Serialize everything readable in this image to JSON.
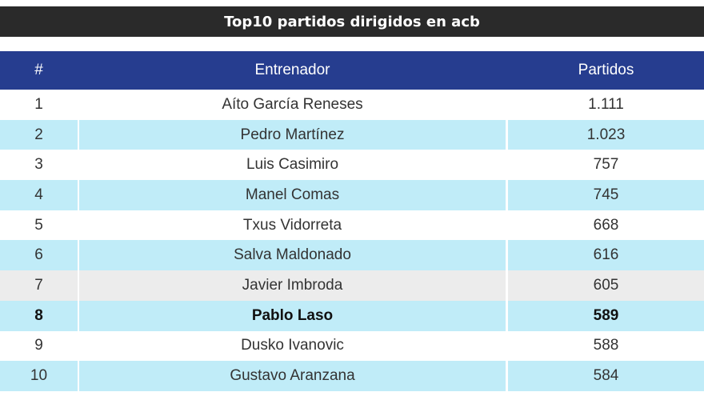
{
  "chart_data": {
    "type": "table",
    "title": "Top10 partidos dirigidos en acb",
    "columns": [
      "#",
      "Entrenador",
      "Partidos"
    ],
    "rows": [
      {
        "rank": "1",
        "coach": "Aíto García Reneses",
        "games": "1.111",
        "style": "white"
      },
      {
        "rank": "2",
        "coach": "Pedro Martínez",
        "games": "1.023",
        "style": "blue"
      },
      {
        "rank": "3",
        "coach": "Luis Casimiro",
        "games": "757",
        "style": "white"
      },
      {
        "rank": "4",
        "coach": "Manel Comas",
        "games": "745",
        "style": "blue"
      },
      {
        "rank": "5",
        "coach": "Txus Vidorreta",
        "games": "668",
        "style": "white"
      },
      {
        "rank": "6",
        "coach": "Salva Maldonado",
        "games": "616",
        "style": "blue"
      },
      {
        "rank": "7",
        "coach": "Javier Imbroda",
        "games": "605",
        "style": "grey"
      },
      {
        "rank": "8",
        "coach": "Pablo Laso",
        "games": "589",
        "style": "blue",
        "highlight": true
      },
      {
        "rank": "9",
        "coach": "Dusko Ivanovic",
        "games": "588",
        "style": "white"
      },
      {
        "rank": "10",
        "coach": "Gustavo Aranzana",
        "games": "584",
        "style": "blue"
      }
    ]
  },
  "colors": {
    "title_bg": "#2a2a2a",
    "header_bg": "#263d8f",
    "row_blue": "#c0ecf8",
    "row_grey": "#ececec",
    "row_white": "#ffffff"
  }
}
